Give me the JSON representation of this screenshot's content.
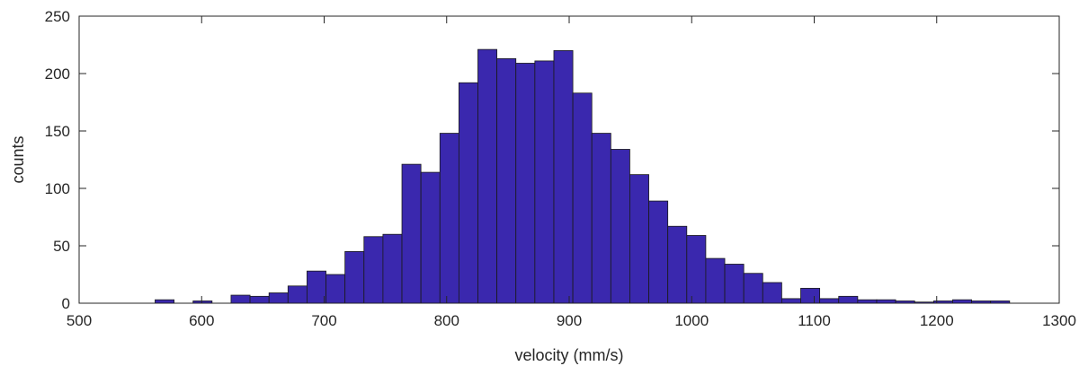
{
  "chart_data": {
    "type": "bar",
    "title": "",
    "xlabel": "velocity (mm/s)",
    "ylabel": "counts",
    "xlim": [
      500,
      1300
    ],
    "ylim": [
      0,
      250
    ],
    "xticks": [
      500,
      600,
      700,
      800,
      900,
      1000,
      1100,
      1200,
      1300
    ],
    "yticks": [
      0,
      50,
      100,
      150,
      200,
      250
    ],
    "grid": false,
    "bar_color": "#3a28ae",
    "bin_start": 562,
    "bin_width": 15.5,
    "values": [
      3,
      0,
      2,
      0,
      7,
      6,
      9,
      15,
      28,
      25,
      45,
      58,
      60,
      121,
      114,
      148,
      192,
      221,
      213,
      209,
      211,
      220,
      183,
      148,
      134,
      112,
      89,
      67,
      59,
      39,
      34,
      26,
      18,
      4,
      13,
      4,
      6,
      3,
      3,
      2,
      1,
      2,
      3,
      2,
      2
    ]
  }
}
